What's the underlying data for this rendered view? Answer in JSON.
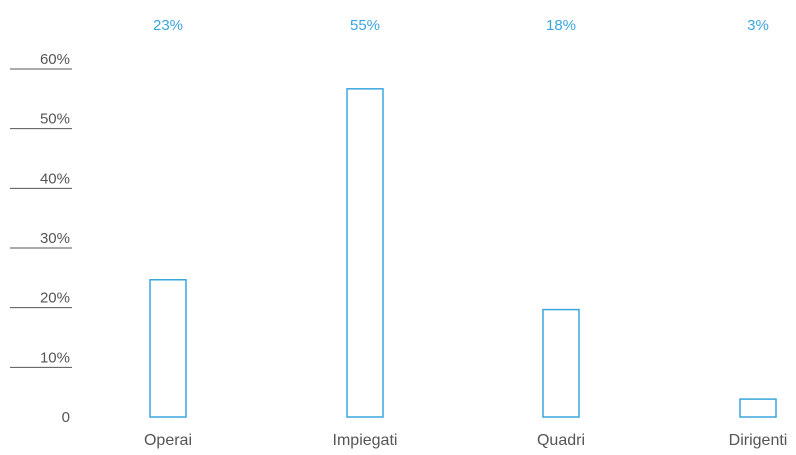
{
  "chart_data": {
    "type": "bar",
    "categories": [
      "Operai",
      "Impiegati",
      "Quadri",
      "Dirigenti"
    ],
    "values": [
      23,
      55,
      18,
      3
    ],
    "value_labels": [
      "23%",
      "55%",
      "18%",
      "3%"
    ],
    "y_ticks": [
      "0",
      "10%",
      "20%",
      "30%",
      "40%",
      "50%",
      "60%"
    ],
    "ylim": [
      0,
      60
    ],
    "title": "",
    "xlabel": "",
    "ylabel": "",
    "grid": false,
    "colors": {
      "bar_stroke": "#3aa6dd",
      "value_label": "#3aa6dd",
      "axis_text": "#555555",
      "tick_line": "#555555"
    }
  }
}
